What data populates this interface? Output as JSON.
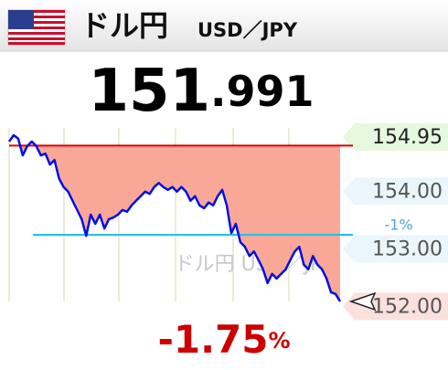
{
  "header": {
    "title": "ドル円",
    "pair": "USD／JPY"
  },
  "price": {
    "integer": "151",
    "fraction": ".991"
  },
  "change": {
    "value": "-1.75",
    "unit": "%"
  },
  "chart_data": {
    "type": "line",
    "watermark": "ドル円 USD／JPY",
    "series": [
      {
        "name": "USD/JPY",
        "color": "#0010e0",
        "values": [
          154.77,
          154.88,
          154.82,
          154.53,
          154.69,
          154.77,
          154.69,
          154.53,
          154.56,
          154.37,
          154.45,
          154.13,
          153.98,
          153.9,
          153.74,
          153.58,
          153.42,
          153.13,
          153.5,
          153.34,
          153.5,
          153.26,
          153.42,
          153.45,
          153.5,
          153.58,
          153.55,
          153.66,
          153.74,
          153.82,
          153.9,
          153.86,
          153.98,
          154.05,
          153.98,
          153.93,
          153.98,
          153.9,
          153.98,
          153.9,
          153.74,
          153.82,
          153.66,
          153.61,
          153.71,
          153.66,
          153.82,
          153.93,
          153.66,
          153.18,
          153.34,
          153.02,
          152.94,
          152.78,
          152.86,
          152.71,
          152.55,
          152.31,
          152.47,
          152.39,
          152.47,
          152.55,
          152.71,
          152.86,
          152.94,
          152.63,
          152.55,
          152.78,
          152.63,
          152.55,
          152.39,
          152.15,
          152.12,
          151.99
        ]
      }
    ],
    "reference": {
      "value": 154.7,
      "color": "#e00000"
    },
    "threshold": {
      "value": 153.15,
      "label": "-1%",
      "color": "#22c0e8"
    },
    "fill_color": "#f9a898",
    "ylim": [
      151.99,
      154.95
    ],
    "yticks": [
      154.95,
      {
        "value": 154,
        "label": "154.00"
      },
      {
        "value": 153,
        "label": "153.00"
      },
      {
        "value": 152,
        "label": "152.00"
      }
    ],
    "tick_backgrounds": [
      "#e6f8df",
      "#eaf6fb",
      "#eaf6fb",
      "#fbe0de"
    ]
  }
}
